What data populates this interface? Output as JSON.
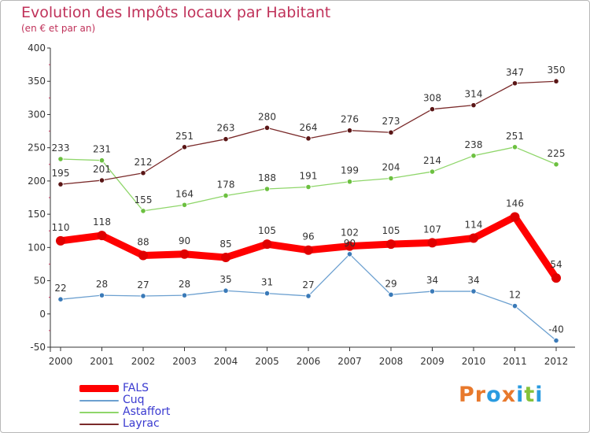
{
  "header": {
    "title": "Evolution des Impôts locaux par Habitant",
    "subtitle": "(en € et par an)"
  },
  "brand": {
    "text": "Proxiti",
    "colors": [
      "#e8792c",
      "#e8792c",
      "#2a9be0",
      "#e8792c",
      "#2a9be0",
      "#85c23a",
      "#2a9be0"
    ]
  },
  "chart_data": {
    "type": "line",
    "title": "Evolution des Impôts locaux par Habitant",
    "subtitle": "(en € et par an)",
    "x": [
      "2000",
      "2001",
      "2002",
      "2003",
      "2004",
      "2005",
      "2006",
      "2007",
      "2008",
      "2009",
      "2010",
      "2011",
      "2012"
    ],
    "ylim": [
      -50,
      400
    ],
    "yticks": [
      -50,
      0,
      50,
      100,
      150,
      200,
      250,
      300,
      350,
      400
    ],
    "grid": false,
    "legend_position": "bottom-left",
    "series": [
      {
        "name": "FALS",
        "color": "#ff0000",
        "values": [
          110,
          118,
          88,
          90,
          85,
          105,
          96,
          102,
          105,
          107,
          114,
          146,
          54
        ]
      },
      {
        "name": "Cuq",
        "color": "#6ca0d0",
        "values": [
          22,
          28,
          27,
          28,
          35,
          31,
          27,
          90,
          29,
          34,
          34,
          12,
          -40
        ]
      },
      {
        "name": "Astaffort",
        "color": "#8fd66a",
        "values": [
          233,
          231,
          155,
          164,
          178,
          188,
          191,
          199,
          204,
          214,
          238,
          251,
          225
        ]
      },
      {
        "name": "Layrac",
        "color": "#7a2a2a",
        "values": [
          195,
          201,
          212,
          251,
          263,
          280,
          264,
          276,
          273,
          308,
          314,
          347,
          350
        ]
      }
    ],
    "point_labels": {
      "FALS": [
        "110",
        "118",
        "88",
        "90",
        "85",
        "105",
        "96",
        "102",
        "105",
        "107",
        "114",
        "146",
        "54"
      ],
      "Cuq": [
        "22",
        "28",
        "27",
        "28",
        "35",
        "31",
        "27",
        "90",
        "29",
        "34",
        "34",
        "12",
        "-40"
      ],
      "Astaffort": [
        "233",
        "231",
        "155",
        "164",
        "178",
        "188",
        "191",
        "199",
        "204",
        "214",
        "238",
        "251",
        "225"
      ],
      "Layrac": [
        "195",
        "201",
        "212",
        "251",
        "263",
        "280",
        "264",
        "276",
        "273",
        "308",
        "314",
        "347",
        "350"
      ]
    }
  }
}
